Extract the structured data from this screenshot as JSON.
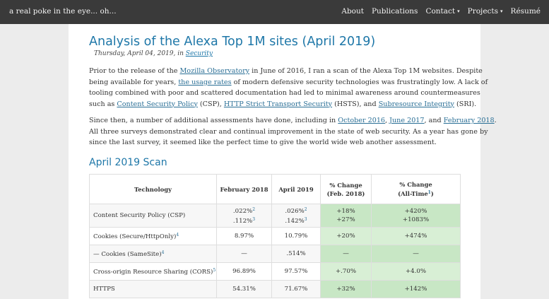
{
  "topbar": {
    "brand": "a real poke in the eye... oh...",
    "nav": [
      {
        "label": "About",
        "caret": ""
      },
      {
        "label": "Publications",
        "caret": ""
      },
      {
        "label": "Contact",
        "caret": "▾"
      },
      {
        "label": "Projects",
        "caret": "▾"
      },
      {
        "label": "Résumé",
        "caret": ""
      }
    ]
  },
  "article": {
    "title": "Analysis of the Alexa Top 1M sites (April 2019)",
    "date": "Thursday, April 04, 2019, in ",
    "category": "Security",
    "p1": [
      [
        "Prior to the release of the ",
        {
          "link": "Mozilla Observatory"
        },
        " in June of 2016, I ran a scan of the Alexa Top 1M websites. Despite"
      ],
      [
        "being available for years, ",
        {
          "link": "the usage rates"
        },
        " of modern defensive security technologies was frustratingly low. A lack of"
      ],
      [
        "tooling combined with poor and scattered documentation had led to minimal awareness around countermeasures"
      ],
      [
        "such as ",
        {
          "link": "Content Security Policy"
        },
        " (CSP), ",
        {
          "link": "HTTP Strict Transport Security"
        },
        " (HSTS), and ",
        {
          "link": "Subresource Integrity"
        },
        " (SRI)."
      ]
    ],
    "p2": [
      [
        "Since then, a number of additional assessments have done, including in ",
        {
          "link": "October 2016"
        },
        ", ",
        {
          "link": "June 2017"
        },
        ", and ",
        {
          "link": "February 2018"
        },
        "."
      ],
      [
        "All three surveys demonstrated clear and continual improvement in the state of web security. As a year has gone by"
      ],
      [
        "since the last survey, it seemed like the perfect time to give the world wide web another assessment."
      ]
    ],
    "section_title": "April 2019 Scan"
  },
  "table": {
    "headers": {
      "technology": "Technology",
      "feb2018": "February 2018",
      "apr2019": "April 2019",
      "change_feb_line1": "% Change",
      "change_feb_line2": "(Feb. 2018)",
      "change_all_line1": "% Change",
      "change_all_line2": "(All-Time",
      "change_all_sup": "1",
      "change_all_close": ")"
    },
    "rows": [
      {
        "tech": "Content Security Policy (CSP)",
        "sup": "",
        "feb": ".022%",
        "feb_sup": "2",
        "feb2": ".112%",
        "feb2_sup": "3",
        "apr": ".026%",
        "apr_sup": "2",
        "apr2": ".142%",
        "apr2_sup": "3",
        "chg": "+18%",
        "chg2": "+27%",
        "all": "+420%",
        "all2": "+1083%"
      },
      {
        "tech": "Cookies (Secure/HttpOnly)",
        "sup": "4",
        "feb": "8.97%",
        "apr": "10.79%",
        "chg": "+20%",
        "all": "+474%"
      },
      {
        "tech": "— Cookies (SameSite)",
        "sup": "4",
        "feb": "—",
        "apr": ".514%",
        "chg": "—",
        "all": "—"
      },
      {
        "tech": "Cross-origin Resource Sharing (CORS)",
        "sup": "5",
        "feb": "96.89%",
        "apr": "97.57%",
        "chg": "+.70%",
        "all": "+4.0%"
      },
      {
        "tech": "HTTPS",
        "sup": "",
        "feb": "54.31%",
        "apr": "71.67%",
        "chg": "+32%",
        "all": "+142%"
      }
    ]
  },
  "colors": {
    "topbar": "#3a3a3a",
    "accent": "#1e77a8",
    "page_bg": "#ececec",
    "change_cell_green": "#c8e7c5"
  }
}
